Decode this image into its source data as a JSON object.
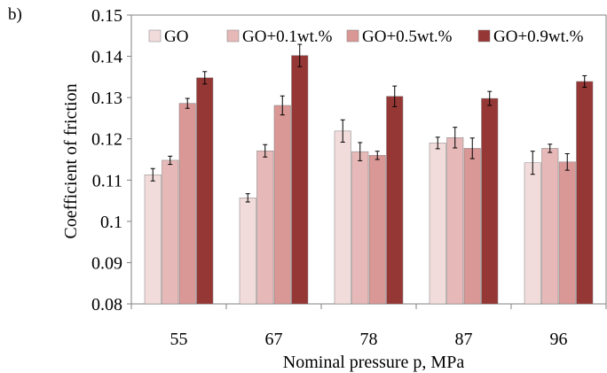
{
  "panel_label": "b)",
  "chart_data": {
    "type": "bar",
    "title": "",
    "xlabel": "Nominal pressure p, MPa",
    "ylabel": "Coefficient of friction",
    "ylim": [
      0.08,
      0.15
    ],
    "yticks": [
      "0.08",
      "0.09",
      "0.1",
      "0.11",
      "0.12",
      "0.13",
      "0.14",
      "0.15"
    ],
    "grid": false,
    "legend_position": "top",
    "categories": [
      "55",
      "67",
      "78",
      "87",
      "96"
    ],
    "series": [
      {
        "name": "GO",
        "color": "#f2dcdb",
        "values": [
          0.1113,
          0.1057,
          0.1219,
          0.119,
          0.1142
        ],
        "errors": [
          0.0015,
          0.001,
          0.0027,
          0.0014,
          0.0028
        ]
      },
      {
        "name": "GO+0.1wt.%",
        "color": "#e6b9b8",
        "values": [
          0.1148,
          0.1171,
          0.1169,
          0.1203,
          0.1177
        ],
        "errors": [
          0.001,
          0.0015,
          0.0022,
          0.0025,
          0.001
        ]
      },
      {
        "name": "GO+0.5wt.%",
        "color": "#d99795",
        "values": [
          0.1286,
          0.1281,
          0.116,
          0.1177,
          0.1144
        ],
        "errors": [
          0.0012,
          0.0023,
          0.001,
          0.0025,
          0.002
        ]
      },
      {
        "name": "GO+0.9wt.%",
        "color": "#953735",
        "values": [
          0.1348,
          0.1402,
          0.1303,
          0.1298,
          0.1339
        ],
        "errors": [
          0.0015,
          0.0027,
          0.0025,
          0.0017,
          0.0014
        ]
      }
    ]
  }
}
